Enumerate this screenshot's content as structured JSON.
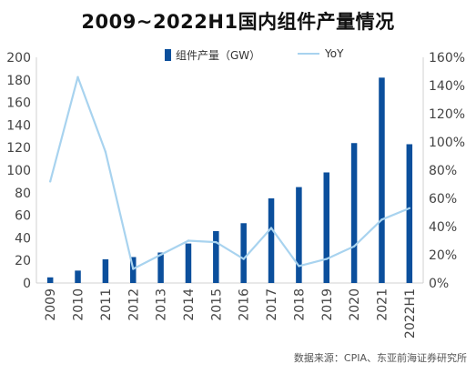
{
  "title": "2009~2022H1国内组件产量情况",
  "legend": {
    "bar_label": "组件产量（GW）",
    "line_label": "YoY"
  },
  "source": "数据来源：CPIA、东亚前海证券研究所",
  "colors": {
    "bar": "#0b4f9c",
    "line": "#a8d3ef",
    "axis": "#d0d0d0",
    "tick_text": "#444444"
  },
  "chart_data": {
    "type": "bar",
    "title": "2009~2022H1国内组件产量情况",
    "categories": [
      "2009",
      "2010",
      "2011",
      "2012",
      "2013",
      "2014",
      "2015",
      "2016",
      "2017",
      "2018",
      "2019",
      "2020",
      "2021",
      "2022H1"
    ],
    "series": [
      {
        "name": "组件产量（GW）",
        "type": "bar",
        "axis": "left",
        "values": [
          5,
          11,
          21,
          23,
          27,
          35,
          46,
          53,
          75,
          85,
          98,
          124,
          182,
          123
        ]
      },
      {
        "name": "YoY",
        "type": "line",
        "axis": "right",
        "values": [
          72,
          146,
          93,
          10,
          20,
          30,
          29,
          17,
          39,
          12,
          17,
          26,
          45,
          53
        ]
      }
    ],
    "y_left": {
      "min": 0,
      "max": 200,
      "ticks": [
        "0",
        "20",
        "40",
        "60",
        "80",
        "100",
        "120",
        "140",
        "160",
        "180",
        "200"
      ]
    },
    "y_right": {
      "min": 0,
      "max": 160,
      "ticks": [
        "0%",
        "20%",
        "40%",
        "60%",
        "80%",
        "100%",
        "120%",
        "140%",
        "160%"
      ]
    },
    "grid": false,
    "legend_position": "top-center"
  }
}
